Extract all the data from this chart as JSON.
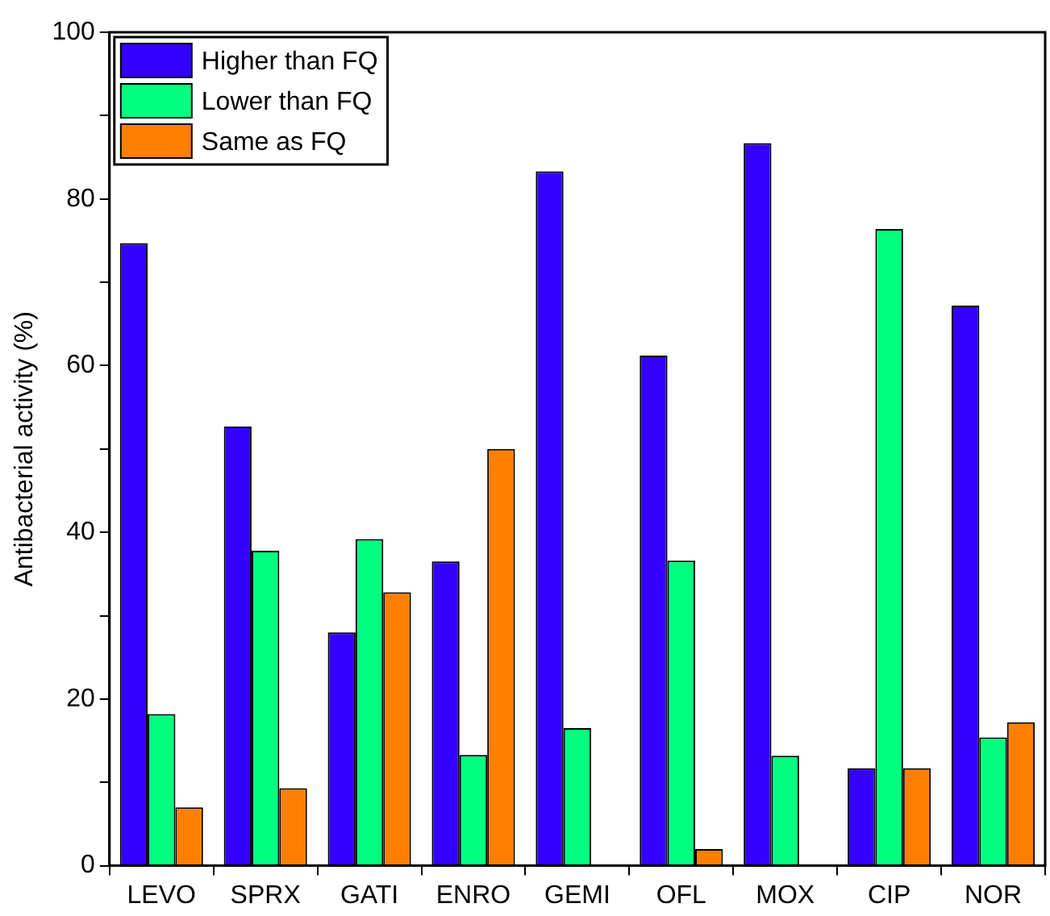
{
  "chart_data": {
    "type": "bar",
    "ylabel": "Antibacterial activity (%)",
    "categories": [
      "LEVO",
      "SPRX",
      "GATI",
      "ENRO",
      "GEMI",
      "OFL",
      "MOX",
      "CIP",
      "NOR"
    ],
    "series": [
      {
        "name": "Higher than FQ",
        "color": "#3300ff",
        "values": [
          74.7,
          52.7,
          28,
          36.5,
          83.3,
          61.2,
          86.7,
          11.7,
          67.2
        ]
      },
      {
        "name": "Lower than FQ",
        "color": "#00ff7f",
        "values": [
          18.2,
          37.8,
          39.2,
          13.3,
          16.5,
          36.6,
          13.2,
          76.4,
          15.4
        ]
      },
      {
        "name": "Same as FQ",
        "color": "#ff7f00",
        "values": [
          7,
          9.3,
          32.8,
          50,
          null,
          2,
          null,
          11.7,
          17.2
        ]
      }
    ],
    "ylim": [
      0,
      100
    ],
    "yticks": [
      0,
      {
        "value": 10,
        "label": null
      },
      20,
      {
        "value": 30,
        "label": null
      },
      40,
      {
        "value": 50,
        "label": null
      },
      60,
      {
        "value": 70,
        "label": null
      },
      80,
      {
        "value": 90,
        "label": null
      },
      100
    ],
    "grid": false,
    "legend": "top left"
  }
}
